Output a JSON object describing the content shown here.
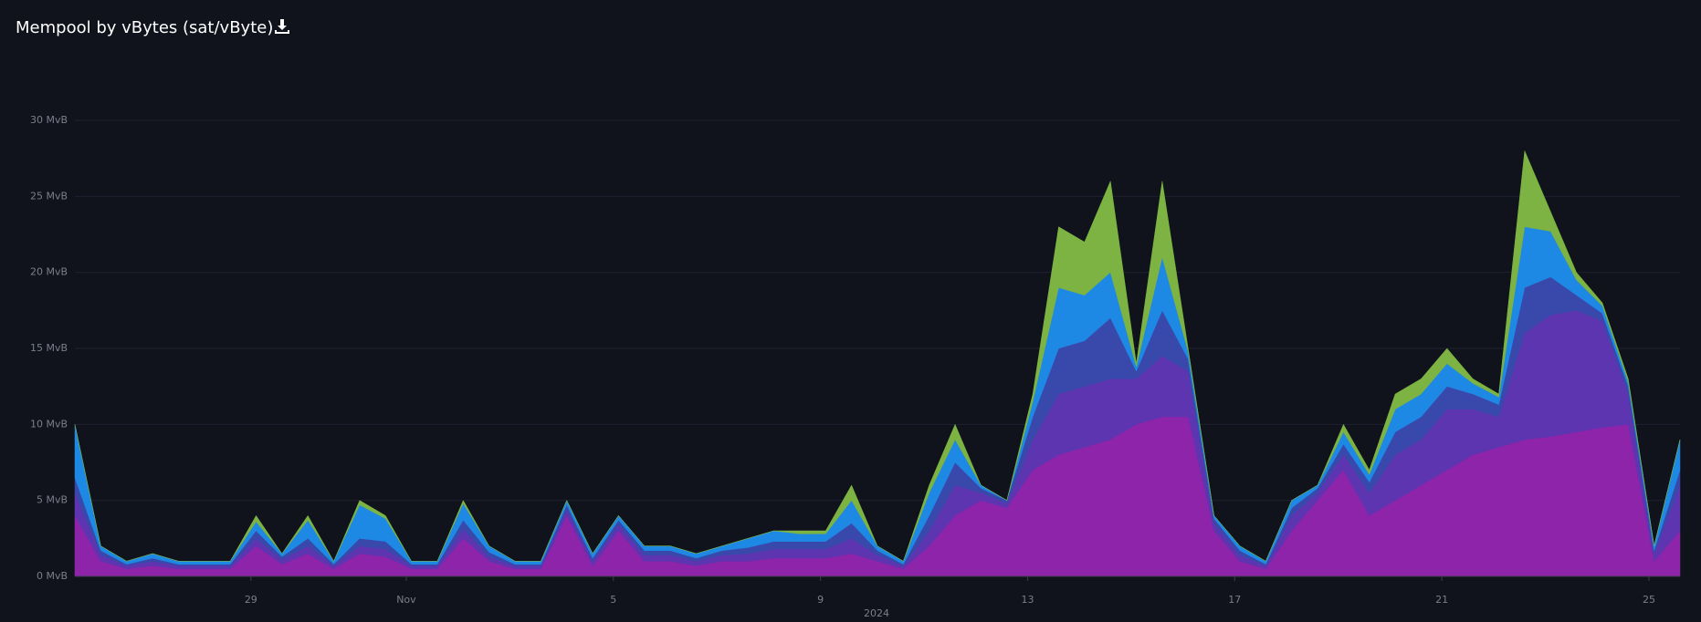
{
  "chart_data": {
    "type": "stacked-area",
    "title": "Mempool by vBytes (sat/vByte)",
    "xlabel": "2024",
    "x": [
      25.6,
      26.1,
      26.6,
      27.1,
      27.6,
      28.1,
      28.6,
      29.1,
      29.6,
      30.1,
      30.6,
      31.1,
      31.6,
      32.1,
      32.6,
      33.1,
      33.6,
      34.1,
      34.6,
      35.1,
      35.6,
      36.1,
      36.6,
      37.1,
      37.6,
      38.1,
      38.6,
      39.1,
      39.6,
      40.1,
      40.6,
      41.1,
      41.6,
      42.1,
      42.6,
      43.1,
      43.6,
      44.1,
      44.6,
      45.1,
      45.6,
      46.1,
      46.6,
      47.1,
      47.6,
      48.1,
      48.6,
      49.1,
      49.6,
      50.1,
      50.6,
      51.1,
      51.6,
      52.1,
      52.6,
      53.1,
      53.6,
      54.1,
      54.6,
      55.1,
      55.6,
      56.1,
      56.6
    ],
    "xlim": [
      25.6,
      56.6
    ],
    "xticks": [
      {
        "value": 29,
        "label": "29"
      },
      {
        "value": 32,
        "label": "Nov"
      },
      {
        "value": 36,
        "label": "5"
      },
      {
        "value": 40,
        "label": "9"
      },
      {
        "value": 44,
        "label": "13"
      },
      {
        "value": 48,
        "label": "17"
      },
      {
        "value": 52,
        "label": "21"
      },
      {
        "value": 56,
        "label": "25"
      }
    ],
    "ylim": [
      0,
      30
    ],
    "yticks": [
      {
        "value": 0,
        "label": "0 MvB"
      },
      {
        "value": 5,
        "label": "5 MvB"
      },
      {
        "value": 10,
        "label": "10 MvB"
      },
      {
        "value": 15,
        "label": "15 MvB"
      },
      {
        "value": 20,
        "label": "20 MvB"
      },
      {
        "value": 25,
        "label": "25 MvB"
      },
      {
        "value": 30,
        "label": "30 MvB"
      }
    ],
    "grid": true,
    "series": [
      {
        "color": "#8e24aa",
        "values": [
          4,
          1,
          0.5,
          0.7,
          0.5,
          0.5,
          0.5,
          2,
          0.8,
          1.5,
          0.5,
          1.5,
          1.3,
          0.5,
          0.5,
          2.5,
          1,
          0.5,
          0.5,
          4,
          0.7,
          3,
          1,
          1,
          0.7,
          1,
          1,
          1.2,
          1.2,
          1.2,
          1.5,
          1,
          0.5,
          2,
          4,
          5,
          4.5,
          7,
          8,
          8.5,
          9,
          10,
          10.5,
          10.5,
          3,
          1,
          0.5,
          3,
          5,
          7,
          4,
          5,
          6,
          7,
          8,
          8.5,
          9,
          9.2,
          9.5,
          9.8,
          10,
          1,
          3
        ]
      },
      {
        "color": "#5e35b1",
        "values": [
          1.5,
          0.4,
          0.2,
          0.3,
          0.2,
          0.2,
          0.2,
          0.5,
          0.3,
          0.5,
          0.2,
          0.5,
          0.5,
          0.2,
          0.2,
          0.6,
          0.3,
          0.2,
          0.2,
          0.4,
          0.3,
          0.4,
          0.4,
          0.4,
          0.3,
          0.4,
          0.5,
          0.6,
          0.6,
          0.6,
          1,
          0.4,
          0.2,
          1,
          2,
          0.5,
          0.3,
          2,
          4,
          4,
          4,
          3,
          4,
          3,
          0.5,
          0.4,
          0.2,
          1,
          0.5,
          1,
          1.5,
          3,
          3,
          4,
          3,
          2,
          7,
          8,
          8,
          7,
          2,
          0.5,
          3
        ]
      },
      {
        "color": "#3949ab",
        "values": [
          1,
          0.3,
          0.1,
          0.2,
          0.1,
          0.1,
          0.1,
          0.5,
          0.2,
          0.5,
          0.1,
          0.5,
          0.5,
          0.1,
          0.1,
          0.6,
          0.3,
          0.1,
          0.1,
          0.3,
          0.2,
          0.3,
          0.3,
          0.3,
          0.2,
          0.3,
          0.4,
          0.5,
          0.5,
          0.5,
          1,
          0.3,
          0.1,
          1,
          1.5,
          0.3,
          0.2,
          1.5,
          3,
          3,
          4,
          0.5,
          3,
          0.8,
          0.3,
          0.3,
          0.1,
          0.5,
          0.3,
          0.7,
          0.7,
          1.5,
          1.5,
          1.5,
          1,
          0.8,
          3,
          2.5,
          1,
          0.5,
          0.5,
          0.2,
          1
        ]
      },
      {
        "color": "#1e88e5",
        "values": [
          3.5,
          0.3,
          0.2,
          0.3,
          0.2,
          0.2,
          0.2,
          0.6,
          0.2,
          1.2,
          0.2,
          2.2,
          1.5,
          0.2,
          0.2,
          1.1,
          0.4,
          0.2,
          0.2,
          0.3,
          0.3,
          0.3,
          0.3,
          0.3,
          0.3,
          0.3,
          0.6,
          0.7,
          0.5,
          0.5,
          1.5,
          0.3,
          0.2,
          1.5,
          1.5,
          0.2,
          0,
          1,
          4,
          3,
          3,
          0.3,
          3.5,
          0.5,
          0.2,
          0.3,
          0.2,
          0.5,
          0.2,
          0.8,
          0.5,
          1.5,
          1.5,
          1.5,
          0.7,
          0.5,
          4,
          3,
          1,
          0.5,
          0.3,
          0.3,
          2
        ]
      },
      {
        "color": "#7cb342",
        "values": [
          0,
          0,
          0,
          0,
          0,
          0,
          0,
          0.4,
          0,
          0.3,
          0,
          0.3,
          0.2,
          0,
          0,
          0.2,
          0,
          0,
          0,
          0,
          0,
          0,
          0,
          0,
          0,
          0,
          0,
          0,
          0.2,
          0.2,
          1,
          0,
          0,
          0.5,
          1,
          0,
          0,
          0.5,
          4,
          3.5,
          6,
          0.2,
          5,
          0.2,
          0,
          0,
          0,
          0,
          0,
          0.5,
          0.3,
          1,
          1,
          1,
          0.3,
          0.2,
          5,
          1.3,
          0.5,
          0.2,
          0.2,
          0,
          0
        ]
      }
    ]
  }
}
